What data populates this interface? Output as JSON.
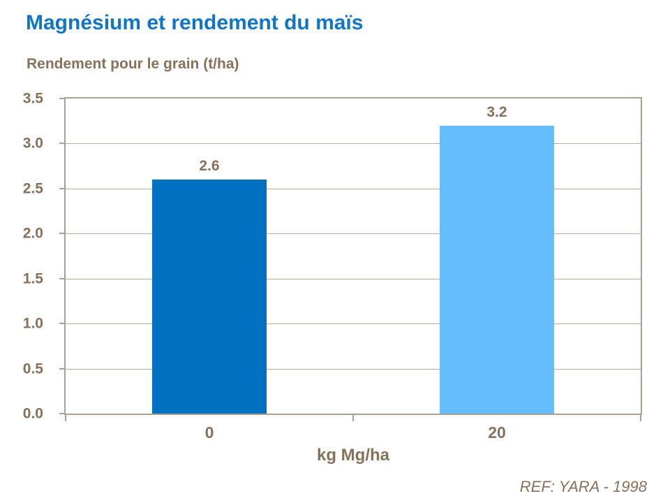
{
  "page": {
    "title": "Magnésium et rendement du maïs",
    "subtitle": "Rendement pour le grain (t/ha)",
    "reference": "REF: YARA - 1998"
  },
  "colors": {
    "title_blue": "#0F75C4",
    "text_brown": "#86715A",
    "gridline": "#B3AC9C",
    "axis": "#A9A192",
    "bar_dark_blue": "#0070C0",
    "bar_light_blue": "#66BDFC"
  },
  "chart_data": {
    "type": "bar",
    "title": "Magnésium et rendement du maïs",
    "ylabel": "Rendement pour le grain (t/ha)",
    "xlabel": "kg Mg/ha",
    "categories": [
      "0",
      "20"
    ],
    "values": [
      2.6,
      3.2
    ],
    "data_labels": [
      "2.6",
      "3.2"
    ],
    "bar_colors": [
      "#0070C0",
      "#66BDFC"
    ],
    "ylim": [
      0,
      3.5
    ],
    "ytick_step": 0.5,
    "ytick_decimals": 1,
    "grid": "horizontal gridlines on",
    "legend": "none",
    "annotation": "REF: YARA - 1998"
  }
}
